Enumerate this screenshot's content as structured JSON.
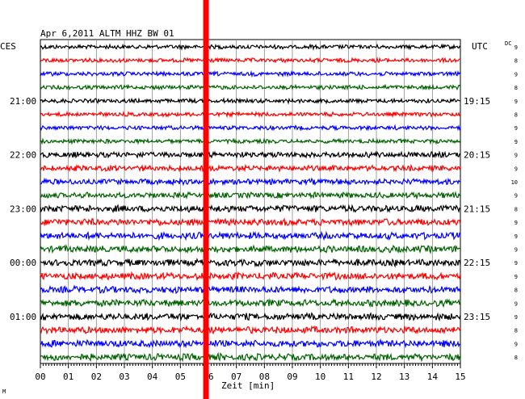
{
  "chart_data": {
    "type": "line",
    "title": "Apr 6,2011   ALTM HHZ BW 01",
    "left_axis_title": "CES",
    "right_axis_title": "UTC",
    "scale_header": "DC",
    "xlabel": "Zeit [min]",
    "x_ticks": [
      "00",
      "01",
      "02",
      "03",
      "04",
      "05",
      "06",
      "07",
      "08",
      "09",
      "10",
      "11",
      "12",
      "13",
      "14",
      "15"
    ],
    "xlim": [
      0,
      15
    ],
    "left_time_labels": [
      {
        "row": 4,
        "text": "21:00"
      },
      {
        "row": 8,
        "text": "22:00"
      },
      {
        "row": 12,
        "text": "23:00"
      },
      {
        "row": 16,
        "text": "00:00"
      },
      {
        "row": 20,
        "text": "01:00"
      }
    ],
    "right_time_labels": [
      {
        "row": 4,
        "text": "19:15"
      },
      {
        "row": 8,
        "text": "20:15"
      },
      {
        "row": 12,
        "text": "21:15"
      },
      {
        "row": 16,
        "text": "22:15"
      },
      {
        "row": 20,
        "text": "23:15"
      }
    ],
    "dc_values": [
      "9",
      "8",
      "9",
      "8",
      "9",
      "8",
      "9",
      "9",
      "9",
      "9",
      "10",
      "9",
      "8",
      "9",
      "9",
      "9",
      "9",
      "9",
      "8",
      "9",
      "9",
      "8",
      "9",
      "8"
    ],
    "trace_colors": [
      "#000000",
      "#ff0000",
      "#0000ff",
      "#006400"
    ],
    "event_marker": {
      "minute": 5.9,
      "color": "#ff0000"
    },
    "rows": 24,
    "footnote": "M"
  }
}
